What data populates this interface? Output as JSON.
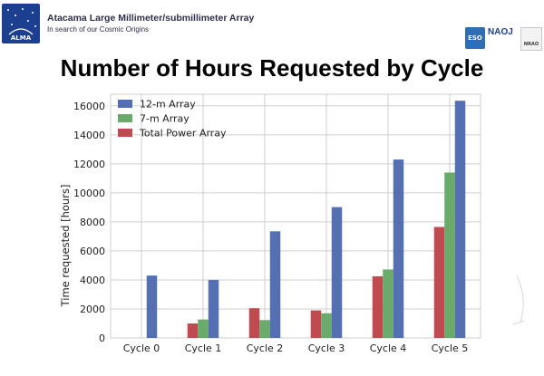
{
  "header": {
    "logo_text": "ALMA",
    "title": "Atacama Large Millimeter/submillimeter Array",
    "subtitle": "In search of our Cosmic Origins",
    "partner_logos": [
      "ESO",
      "NAOJ",
      "NRAO"
    ]
  },
  "page_title": "Number of Hours Requested by Cycle",
  "colors": {
    "12m": "#5470b3",
    "7m": "#6aaa6a",
    "tp": "#bf4b51",
    "grid": "#cfcfcf",
    "logo_bg": "#1d3f8f"
  },
  "chart_data": {
    "type": "bar",
    "title": "Number of Hours Requested by Cycle",
    "xlabel": "",
    "ylabel": "Time requested  [hours]",
    "categories": [
      "Cycle 0",
      "Cycle 1",
      "Cycle 2",
      "Cycle 3",
      "Cycle 4",
      "Cycle 5"
    ],
    "series": [
      {
        "name": "Total Power Array",
        "color": "#bf4b51",
        "values": [
          0,
          1000,
          2050,
          1900,
          4250,
          7650
        ]
      },
      {
        "name": "7-m Array",
        "color": "#6aaa6a",
        "values": [
          0,
          1270,
          1230,
          1700,
          4720,
          11400
        ]
      },
      {
        "name": "12-m Array",
        "color": "#5470b3",
        "values": [
          4300,
          4000,
          7350,
          9020,
          12300,
          16350
        ]
      }
    ],
    "legend_order": [
      "12-m Array",
      "7-m Array",
      "Total Power Array"
    ],
    "ylim": [
      0,
      16800
    ],
    "yticks": [
      0,
      2000,
      4000,
      6000,
      8000,
      10000,
      12000,
      14000,
      16000
    ],
    "legend_position": "top-left",
    "grid": true
  }
}
